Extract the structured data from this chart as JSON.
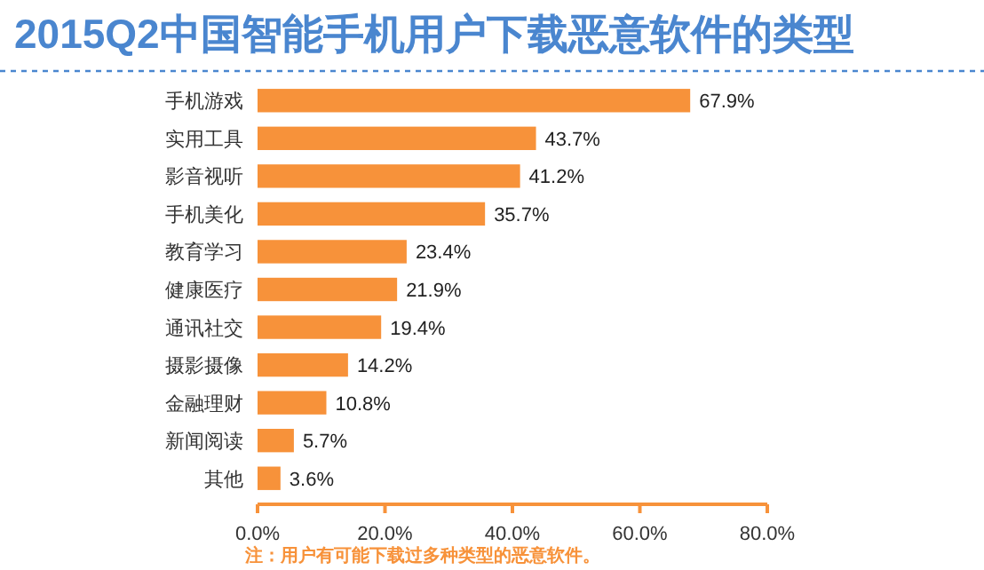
{
  "chart_data": {
    "type": "bar",
    "orientation": "horizontal",
    "title": "2015Q2中国智能手机用户下载恶意软件的类型",
    "categories": [
      "手机游戏",
      "实用工具",
      "影音视听",
      "手机美化",
      "教育学习",
      "健康医疗",
      "通讯社交",
      "摄影摄像",
      "金融理财",
      "新闻阅读",
      "其他"
    ],
    "values": [
      67.9,
      43.7,
      41.2,
      35.7,
      23.4,
      21.9,
      19.4,
      14.2,
      10.8,
      5.7,
      3.6
    ],
    "value_labels": [
      "67.9%",
      "43.7%",
      "41.2%",
      "35.7%",
      "23.4%",
      "21.9%",
      "19.4%",
      "14.2%",
      "10.8%",
      "5.7%",
      "3.6%"
    ],
    "color": "#f7923a",
    "xlim": [
      0,
      80
    ],
    "xticks": [
      {
        "value": 0,
        "label": "0.0%"
      },
      {
        "value": 20,
        "label": "20.0%"
      },
      {
        "value": 40,
        "label": "40.0%"
      },
      {
        "value": 60,
        "label": "60.0%"
      },
      {
        "value": 80,
        "label": "80.0%"
      }
    ],
    "grid": false,
    "annotations": [
      "注：用户有可能下载过多种类型的恶意软件。"
    ]
  }
}
